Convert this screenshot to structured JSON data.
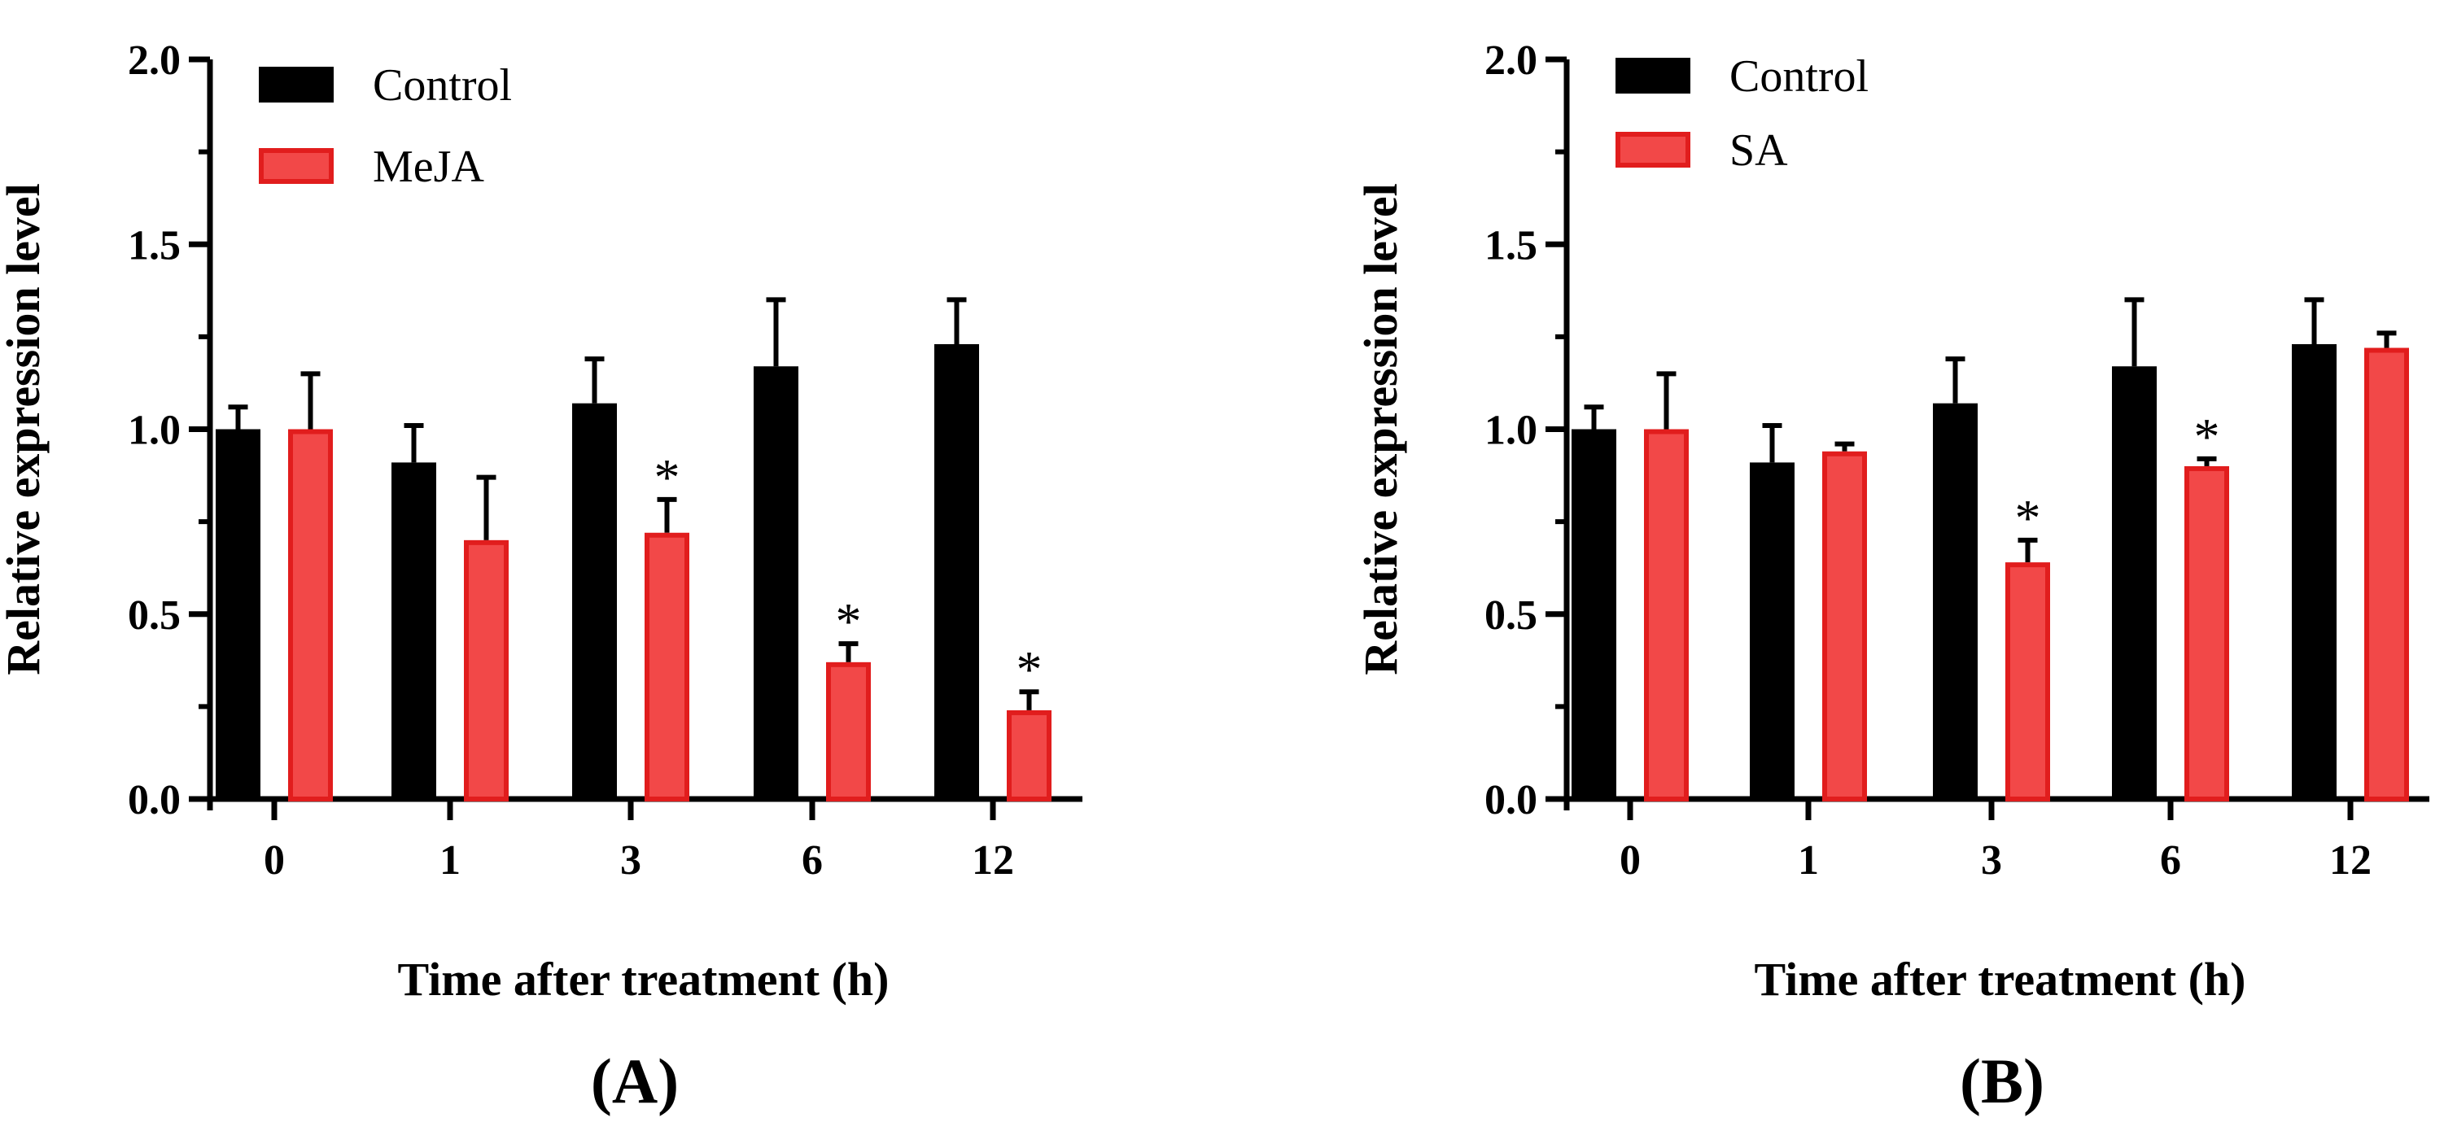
{
  "chart_data": [
    {
      "type": "bar",
      "panel_label": "(A)",
      "xlabel": "Time after treatment (h)",
      "ylabel": "Relative expression level",
      "ylim": [
        0,
        2.0
      ],
      "yticks": [
        "0.0",
        "0.5",
        "1.0",
        "1.5",
        "2.0"
      ],
      "categories": [
        "0",
        "1",
        "3",
        "6",
        "12"
      ],
      "legend_position": "top-left",
      "series": [
        {
          "name": "Control",
          "color": "#000000",
          "values": [
            1.0,
            0.91,
            1.07,
            1.17,
            1.23
          ],
          "errors": [
            0.06,
            0.1,
            0.12,
            0.18,
            0.12
          ],
          "significant": [
            false,
            false,
            false,
            false,
            false
          ]
        },
        {
          "name": "MeJA",
          "color": "#f03a3a",
          "values": [
            1.0,
            0.7,
            0.72,
            0.37,
            0.24
          ],
          "errors": [
            0.15,
            0.17,
            0.09,
            0.05,
            0.05
          ],
          "significant": [
            false,
            false,
            true,
            true,
            true
          ]
        }
      ],
      "significance_marker": "*"
    },
    {
      "type": "bar",
      "panel_label": "(B)",
      "xlabel": "Time after treatment (h)",
      "ylabel": "Relative expression level",
      "ylim": [
        0,
        2.0
      ],
      "yticks": [
        "0.0",
        "0.5",
        "1.0",
        "1.5",
        "2.0"
      ],
      "categories": [
        "0",
        "1",
        "3",
        "6",
        "12"
      ],
      "legend_position": "top-left",
      "series": [
        {
          "name": "Control",
          "color": "#000000",
          "values": [
            1.0,
            0.91,
            1.07,
            1.17,
            1.23
          ],
          "errors": [
            0.06,
            0.1,
            0.12,
            0.18,
            0.12
          ],
          "significant": [
            false,
            false,
            false,
            false,
            false
          ]
        },
        {
          "name": "SA",
          "color": "#f03a3a",
          "values": [
            1.0,
            0.94,
            0.64,
            0.9,
            1.22
          ],
          "errors": [
            0.15,
            0.02,
            0.06,
            0.02,
            0.04
          ],
          "significant": [
            false,
            false,
            true,
            true,
            false
          ]
        }
      ],
      "significance_marker": "*"
    }
  ]
}
